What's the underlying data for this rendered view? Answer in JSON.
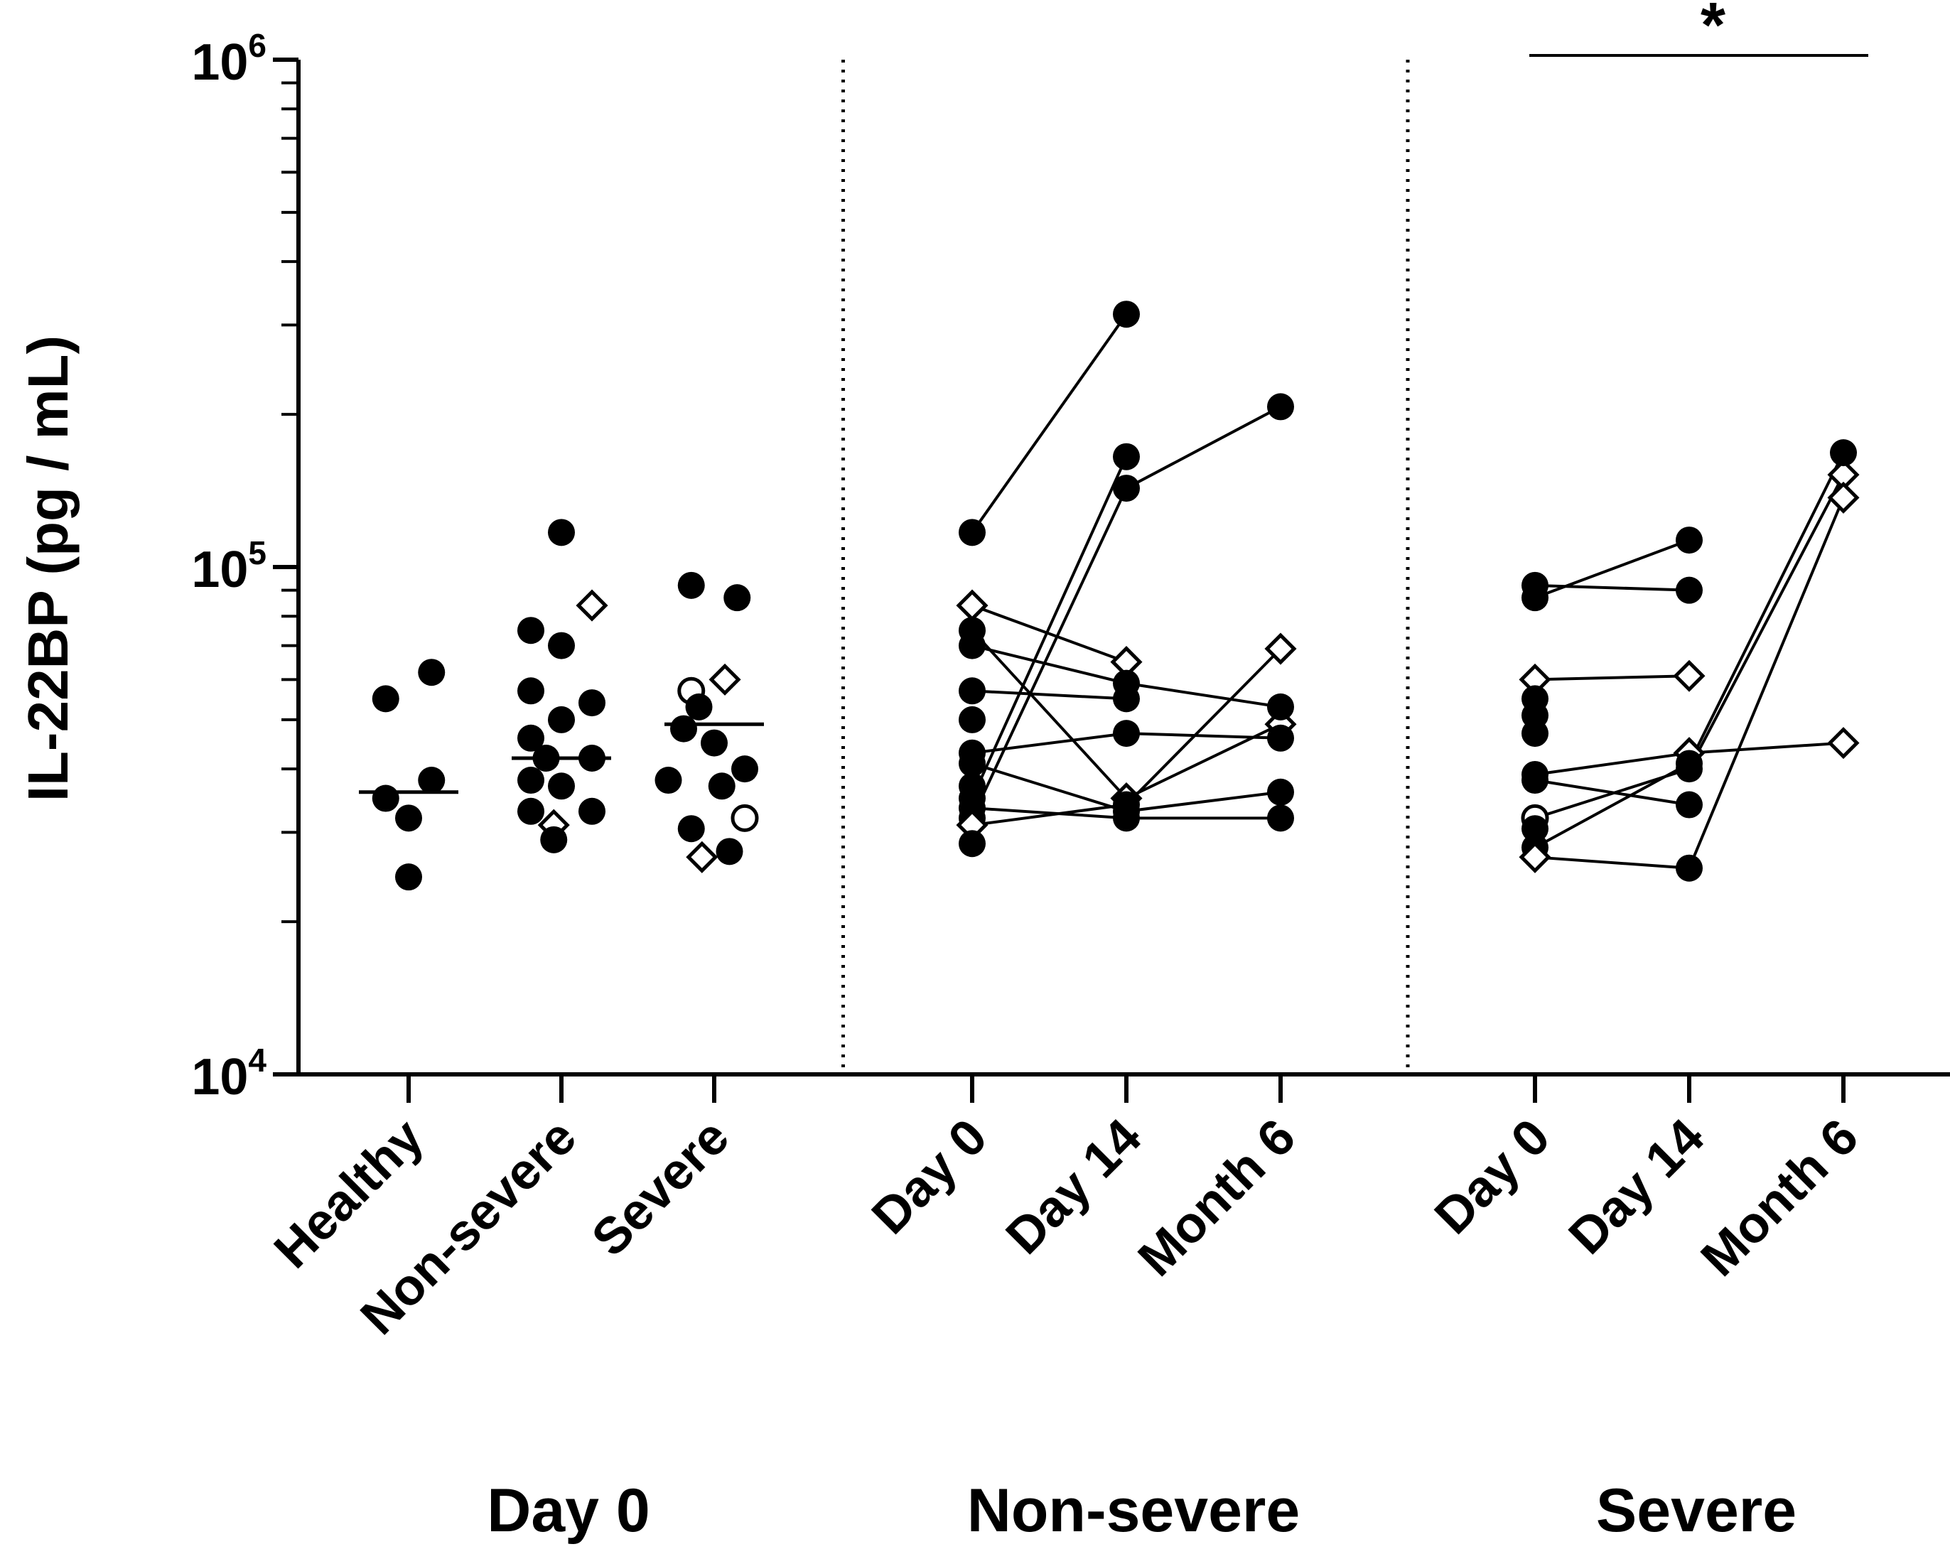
{
  "chart_data": {
    "type": "scatter",
    "title": "",
    "ylabel": "IL-22BP (pg / mL)",
    "yscale": "log",
    "ylim": [
      10000,
      1000000
    ],
    "yticks": [
      {
        "value": 10000,
        "base": "10",
        "exp": "4"
      },
      {
        "value": 100000,
        "base": "10",
        "exp": "5"
      },
      {
        "value": 1000000,
        "base": "10",
        "exp": "6"
      }
    ],
    "categories": [
      "Healthy",
      "Non-severe",
      "Severe",
      "Day 0",
      "Day 14",
      "Month 6",
      "Day 0",
      "Day 14",
      "Month 6"
    ],
    "groups": [
      {
        "label": "Day 0",
        "categories": [
          0,
          1,
          2
        ]
      },
      {
        "label": "Non-severe",
        "categories": [
          3,
          4,
          5
        ]
      },
      {
        "label": "Severe",
        "categories": [
          6,
          7,
          8
        ]
      }
    ],
    "section_dividers": [
      [
        2,
        3
      ],
      [
        5,
        6
      ]
    ],
    "medians": [
      {
        "category": 0,
        "value": 36000
      },
      {
        "category": 1,
        "value": 42000
      },
      {
        "category": 2,
        "value": 49000
      }
    ],
    "scatter_points": [
      {
        "category": 0,
        "offset": -0.15,
        "value": 55000,
        "marker": "filled-circle"
      },
      {
        "category": 0,
        "offset": 0.15,
        "value": 62000,
        "marker": "filled-circle"
      },
      {
        "category": 0,
        "offset": -0.15,
        "value": 35000,
        "marker": "filled-circle"
      },
      {
        "category": 0,
        "offset": 0.15,
        "value": 38000,
        "marker": "filled-circle"
      },
      {
        "category": 0,
        "offset": 0.0,
        "value": 32000,
        "marker": "filled-circle"
      },
      {
        "category": 0,
        "offset": 0.0,
        "value": 24500,
        "marker": "filled-circle"
      },
      {
        "category": 1,
        "offset": 0.0,
        "value": 117000,
        "marker": "filled-circle"
      },
      {
        "category": 1,
        "offset": 0.2,
        "value": 84000,
        "marker": "open-diamond"
      },
      {
        "category": 1,
        "offset": -0.2,
        "value": 75000,
        "marker": "filled-circle"
      },
      {
        "category": 1,
        "offset": 0.0,
        "value": 70000,
        "marker": "filled-circle"
      },
      {
        "category": 1,
        "offset": -0.2,
        "value": 57000,
        "marker": "filled-circle"
      },
      {
        "category": 1,
        "offset": 0.2,
        "value": 54000,
        "marker": "filled-circle"
      },
      {
        "category": 1,
        "offset": 0.0,
        "value": 50000,
        "marker": "filled-circle"
      },
      {
        "category": 1,
        "offset": -0.2,
        "value": 46000,
        "marker": "filled-circle"
      },
      {
        "category": 1,
        "offset": -0.1,
        "value": 42000,
        "marker": "filled-circle"
      },
      {
        "category": 1,
        "offset": 0.2,
        "value": 42000,
        "marker": "filled-circle"
      },
      {
        "category": 1,
        "offset": -0.2,
        "value": 38000,
        "marker": "filled-circle"
      },
      {
        "category": 1,
        "offset": 0.0,
        "value": 37000,
        "marker": "filled-circle"
      },
      {
        "category": 1,
        "offset": -0.2,
        "value": 33000,
        "marker": "filled-circle"
      },
      {
        "category": 1,
        "offset": 0.2,
        "value": 33000,
        "marker": "filled-circle"
      },
      {
        "category": 1,
        "offset": -0.05,
        "value": 31000,
        "marker": "open-diamond"
      },
      {
        "category": 1,
        "offset": -0.05,
        "value": 29000,
        "marker": "filled-circle"
      },
      {
        "category": 2,
        "offset": -0.15,
        "value": 92000,
        "marker": "filled-circle"
      },
      {
        "category": 2,
        "offset": 0.15,
        "value": 87000,
        "marker": "filled-circle"
      },
      {
        "category": 2,
        "offset": 0.07,
        "value": 60000,
        "marker": "open-diamond"
      },
      {
        "category": 2,
        "offset": -0.15,
        "value": 57000,
        "marker": "open-circle"
      },
      {
        "category": 2,
        "offset": -0.1,
        "value": 53000,
        "marker": "filled-circle"
      },
      {
        "category": 2,
        "offset": -0.2,
        "value": 48000,
        "marker": "filled-circle"
      },
      {
        "category": 2,
        "offset": 0.0,
        "value": 45000,
        "marker": "filled-circle"
      },
      {
        "category": 2,
        "offset": 0.2,
        "value": 40000,
        "marker": "filled-circle"
      },
      {
        "category": 2,
        "offset": -0.3,
        "value": 38000,
        "marker": "filled-circle"
      },
      {
        "category": 2,
        "offset": 0.05,
        "value": 37000,
        "marker": "filled-circle"
      },
      {
        "category": 2,
        "offset": 0.2,
        "value": 32000,
        "marker": "open-circle"
      },
      {
        "category": 2,
        "offset": -0.15,
        "value": 30500,
        "marker": "filled-circle"
      },
      {
        "category": 2,
        "offset": 0.1,
        "value": 27500,
        "marker": "filled-circle"
      },
      {
        "category": 2,
        "offset": -0.08,
        "value": 26800,
        "marker": "open-diamond"
      }
    ],
    "paired_series": [
      {
        "points": [
          {
            "category": 3,
            "value": 117000,
            "marker": "filled-circle"
          },
          {
            "category": 4,
            "value": 315000,
            "marker": "filled-circle"
          }
        ]
      },
      {
        "points": [
          {
            "category": 3,
            "value": 32000,
            "marker": "filled-circle"
          },
          {
            "category": 4,
            "value": 143000,
            "marker": "filled-circle"
          },
          {
            "category": 5,
            "value": 207000,
            "marker": "filled-circle"
          }
        ]
      },
      {
        "points": [
          {
            "category": 3,
            "value": 35000,
            "marker": "filled-circle"
          },
          {
            "category": 4,
            "value": 165000,
            "marker": "filled-circle"
          }
        ]
      },
      {
        "points": [
          {
            "category": 3,
            "value": 84000,
            "marker": "open-diamond"
          },
          {
            "category": 4,
            "value": 65000,
            "marker": "open-diamond"
          }
        ]
      },
      {
        "points": [
          {
            "category": 3,
            "value": 75000,
            "marker": "filled-circle"
          },
          {
            "category": 4,
            "value": 35000,
            "marker": "open-diamond"
          },
          {
            "category": 5,
            "value": 49000,
            "marker": "open-diamond"
          }
        ]
      },
      {
        "points": [
          {
            "category": 3,
            "value": 70000,
            "marker": "filled-circle"
          },
          {
            "category": 4,
            "value": 59000,
            "marker": "filled-circle"
          },
          {
            "category": 5,
            "value": 53000,
            "marker": "filled-circle"
          }
        ]
      },
      {
        "points": [
          {
            "category": 3,
            "value": 57000,
            "marker": "filled-circle"
          },
          {
            "category": 4,
            "value": 55000,
            "marker": "filled-circle"
          }
        ]
      },
      {
        "points": [
          {
            "category": 3,
            "value": 43000,
            "marker": "filled-circle"
          },
          {
            "category": 4,
            "value": 47000,
            "marker": "filled-circle"
          },
          {
            "category": 5,
            "value": 46000,
            "marker": "filled-circle"
          }
        ]
      },
      {
        "points": [
          {
            "category": 3,
            "value": 41000,
            "marker": "filled-circle"
          },
          {
            "category": 4,
            "value": 33000,
            "marker": "filled-circle"
          },
          {
            "category": 5,
            "value": 36000,
            "marker": "filled-circle"
          }
        ]
      },
      {
        "points": [
          {
            "category": 3,
            "value": 33500,
            "marker": "filled-circle"
          },
          {
            "category": 4,
            "value": 32000,
            "marker": "filled-circle"
          },
          {
            "category": 5,
            "value": 32000,
            "marker": "filled-circle"
          }
        ]
      },
      {
        "points": [
          {
            "category": 3,
            "value": 31000,
            "marker": "open-diamond"
          },
          {
            "category": 4,
            "value": 34000,
            "marker": "filled-circle"
          },
          {
            "category": 5,
            "value": 69000,
            "marker": "open-diamond"
          }
        ]
      },
      {
        "points": [
          {
            "category": 3,
            "value": 28500,
            "marker": "filled-circle"
          }
        ]
      },
      {
        "points": [
          {
            "category": 3,
            "value": 50000,
            "marker": "filled-circle"
          }
        ]
      },
      {
        "points": [
          {
            "category": 3,
            "value": 37000,
            "marker": "filled-circle"
          }
        ]
      },
      {
        "points": [
          {
            "category": 6,
            "value": 92000,
            "marker": "filled-circle"
          },
          {
            "category": 7,
            "value": 90000,
            "marker": "filled-circle"
          }
        ]
      },
      {
        "points": [
          {
            "category": 6,
            "value": 87000,
            "marker": "filled-circle"
          },
          {
            "category": 7,
            "value": 113000,
            "marker": "filled-circle"
          }
        ]
      },
      {
        "points": [
          {
            "category": 6,
            "value": 60000,
            "marker": "open-diamond"
          },
          {
            "category": 7,
            "value": 61000,
            "marker": "open-diamond"
          }
        ]
      },
      {
        "points": [
          {
            "category": 6,
            "value": 39000,
            "marker": "filled-circle"
          },
          {
            "category": 7,
            "value": 43000,
            "marker": "open-diamond"
          },
          {
            "category": 8,
            "value": 45000,
            "marker": "open-diamond"
          }
        ]
      },
      {
        "points": [
          {
            "category": 6,
            "value": 38000,
            "marker": "filled-circle"
          },
          {
            "category": 7,
            "value": 34000,
            "marker": "filled-circle"
          }
        ]
      },
      {
        "points": [
          {
            "category": 6,
            "value": 32000,
            "marker": "open-circle"
          },
          {
            "category": 7,
            "value": 40000,
            "marker": "filled-circle"
          },
          {
            "category": 8,
            "value": 152000,
            "marker": "open-diamond"
          }
        ]
      },
      {
        "points": [
          {
            "category": 6,
            "value": 28000,
            "marker": "filled-circle"
          },
          {
            "category": 7,
            "value": 41000,
            "marker": "filled-circle"
          },
          {
            "category": 8,
            "value": 168000,
            "marker": "filled-circle"
          }
        ]
      },
      {
        "points": [
          {
            "category": 6,
            "value": 26800,
            "marker": "open-diamond"
          },
          {
            "category": 7,
            "value": 25500,
            "marker": "filled-circle"
          },
          {
            "category": 8,
            "value": 137000,
            "marker": "open-diamond"
          }
        ]
      },
      {
        "points": [
          {
            "category": 6,
            "value": 55000,
            "marker": "filled-circle"
          }
        ]
      },
      {
        "points": [
          {
            "category": 6,
            "value": 51000,
            "marker": "filled-circle"
          }
        ]
      },
      {
        "points": [
          {
            "category": 6,
            "value": 47000,
            "marker": "filled-circle"
          }
        ]
      },
      {
        "points": [
          {
            "category": 6,
            "value": 30500,
            "marker": "filled-circle"
          }
        ]
      }
    ],
    "annotations": [
      {
        "text": "*",
        "from_category": 6,
        "to_category": 8,
        "meaning": "significance bracket"
      }
    ],
    "grid": false,
    "legend": "none"
  }
}
